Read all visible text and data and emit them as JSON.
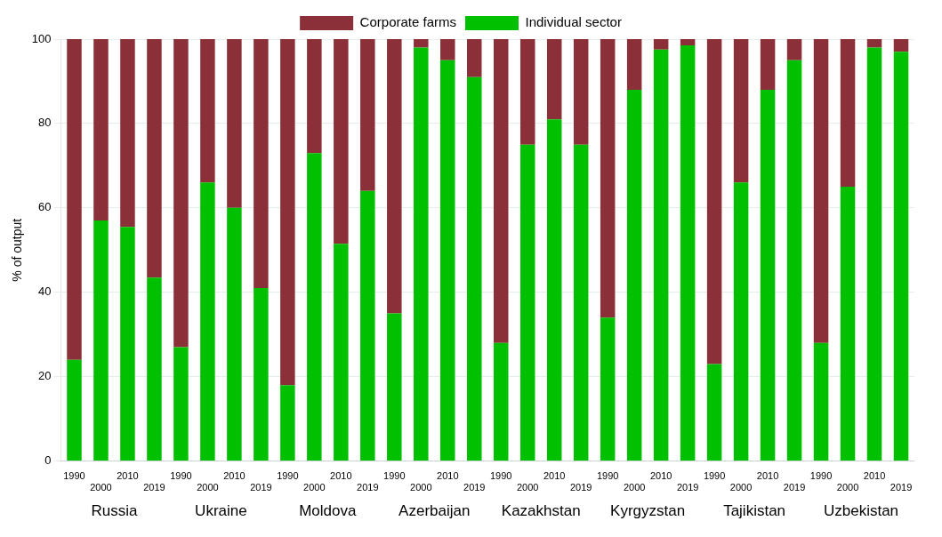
{
  "chart_data": {
    "type": "bar",
    "stacked": true,
    "ylabel": "% of output",
    "categories": [
      "1990",
      "2000",
      "2010",
      "2019",
      "1990",
      "2000",
      "2010",
      "2019",
      "1990",
      "2000",
      "2010",
      "2019",
      "1990",
      "2000",
      "2010",
      "2019",
      "1990",
      "2000",
      "2010",
      "2019",
      "1990",
      "2000",
      "2010",
      "2019",
      "1990",
      "2000",
      "2010",
      "2019",
      "1990",
      "2000",
      "2010",
      "2019"
    ],
    "series": [
      {
        "name": "Individual sector",
        "color": "#00c000",
        "values": [
          24,
          57,
          55.5,
          43.5,
          27,
          66,
          60,
          41,
          18,
          73,
          51.5,
          64,
          35,
          98,
          95,
          91,
          28,
          75,
          81,
          75,
          34,
          88,
          97.5,
          98.5,
          23,
          66,
          88,
          95,
          28,
          65,
          98,
          97
        ]
      },
      {
        "name": "Corporate farms",
        "color": "#8b3038",
        "values": [
          76,
          43,
          44.5,
          56.5,
          73,
          34,
          40,
          59,
          82,
          27,
          48.5,
          36,
          65,
          2,
          5,
          9,
          72,
          25,
          19,
          25,
          66,
          12,
          2.5,
          1.5,
          77,
          34,
          12,
          5,
          72,
          35,
          2,
          3
        ]
      }
    ],
    "annotations": [
      "Russia",
      "Ukraine",
      "Moldova",
      "Azerbaijan",
      "Kazakhstan",
      "Kyrgyzstan",
      "Tajikistan",
      "Uzbekistan"
    ],
    "ylim": [
      0,
      100
    ],
    "yticks": [
      0,
      20,
      40,
      60,
      80,
      100
    ],
    "grid": "y",
    "legend": "top"
  }
}
